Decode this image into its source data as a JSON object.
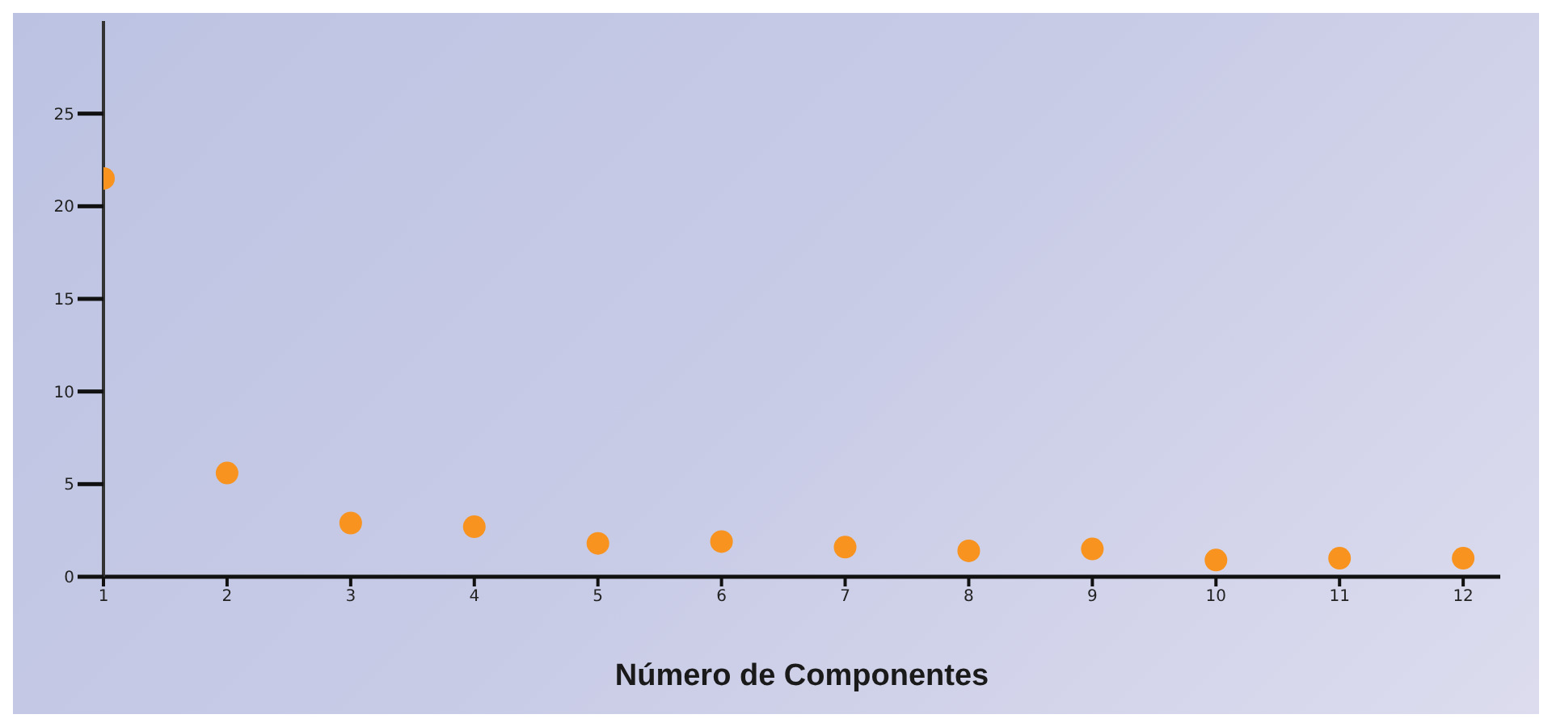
{
  "chart_data": {
    "type": "scatter",
    "xlabel": "Número de Componentes",
    "x": [
      1,
      2,
      3,
      4,
      5,
      6,
      7,
      8,
      9,
      10,
      11,
      12
    ],
    "values": [
      21.5,
      5.6,
      2.9,
      2.7,
      1.8,
      1.9,
      1.6,
      1.4,
      1.5,
      0.9,
      1.0,
      1.0
    ],
    "color": "#f7931e",
    "marker": "circle",
    "xlim": [
      1,
      12.3
    ],
    "xticks": [
      1,
      2,
      3,
      4,
      5,
      6,
      7,
      8,
      9,
      10,
      11,
      12
    ],
    "ylim": [
      0,
      30
    ],
    "yticks": [
      0,
      5,
      10,
      15,
      20,
      25
    ],
    "grid": false,
    "legend": false
  }
}
